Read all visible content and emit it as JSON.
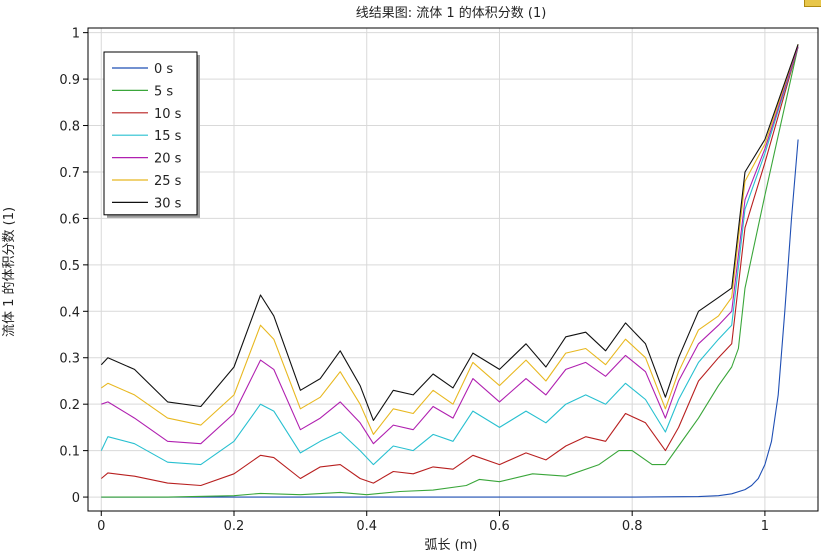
{
  "chart_data": {
    "type": "line",
    "title": "线结果图: 流体 1 的体积分数 (1)",
    "xlabel": "弧长 (m)",
    "ylabel": "流体 1 的体积分数 (1)",
    "xlim": [
      -0.02,
      1.08
    ],
    "ylim": [
      -0.03,
      1.01
    ],
    "xticks": [
      0,
      0.2,
      0.4,
      0.6,
      0.8,
      1
    ],
    "xtick_labels": [
      "0",
      "0.2",
      "0.4",
      "0.6",
      "0.8",
      "1"
    ],
    "yticks": [
      0,
      0.1,
      0.2,
      0.3,
      0.4,
      0.5,
      0.6,
      0.7,
      0.8,
      0.9,
      1
    ],
    "ytick_labels": [
      "0",
      "0.1",
      "0.2",
      "0.3",
      "0.4",
      "0.5",
      "0.6",
      "0.7",
      "0.8",
      "0.9",
      "1"
    ],
    "grid": true,
    "legend_position": "top-left",
    "series": [
      {
        "name": "0 s",
        "color": "#1f4fb4",
        "x": [
          0,
          0.1,
          0.2,
          0.3,
          0.4,
          0.5,
          0.6,
          0.7,
          0.8,
          0.9,
          0.93,
          0.95,
          0.97,
          0.98,
          0.99,
          1.0,
          1.01,
          1.02,
          1.03,
          1.04,
          1.05
        ],
        "y": [
          0,
          0,
          0,
          0,
          0,
          0,
          0,
          0,
          0,
          0.001,
          0.003,
          0.007,
          0.016,
          0.025,
          0.04,
          0.07,
          0.12,
          0.22,
          0.4,
          0.6,
          0.77
        ]
      },
      {
        "name": "5 s",
        "color": "#3aa63a",
        "x": [
          0,
          0.1,
          0.2,
          0.24,
          0.3,
          0.36,
          0.4,
          0.45,
          0.5,
          0.55,
          0.57,
          0.6,
          0.65,
          0.7,
          0.75,
          0.78,
          0.8,
          0.83,
          0.85,
          0.87,
          0.9,
          0.93,
          0.95,
          0.96,
          0.97,
          1.0,
          1.05
        ],
        "y": [
          0,
          0,
          0.003,
          0.008,
          0.005,
          0.01,
          0.005,
          0.012,
          0.015,
          0.025,
          0.038,
          0.033,
          0.05,
          0.045,
          0.07,
          0.1,
          0.1,
          0.07,
          0.07,
          0.11,
          0.17,
          0.24,
          0.28,
          0.32,
          0.45,
          0.65,
          0.97
        ]
      },
      {
        "name": "10 s",
        "color": "#b82020",
        "x": [
          0,
          0.01,
          0.05,
          0.1,
          0.15,
          0.2,
          0.24,
          0.26,
          0.3,
          0.33,
          0.36,
          0.39,
          0.41,
          0.44,
          0.47,
          0.5,
          0.53,
          0.56,
          0.6,
          0.64,
          0.67,
          0.7,
          0.73,
          0.76,
          0.79,
          0.82,
          0.85,
          0.87,
          0.9,
          0.93,
          0.95,
          0.97,
          1.0,
          1.05
        ],
        "y": [
          0.04,
          0.052,
          0.045,
          0.03,
          0.025,
          0.05,
          0.09,
          0.085,
          0.04,
          0.065,
          0.07,
          0.04,
          0.03,
          0.055,
          0.05,
          0.065,
          0.06,
          0.09,
          0.07,
          0.095,
          0.08,
          0.11,
          0.13,
          0.12,
          0.18,
          0.16,
          0.1,
          0.15,
          0.25,
          0.3,
          0.33,
          0.58,
          0.72,
          0.97
        ]
      },
      {
        "name": "15 s",
        "color": "#28c0d0",
        "x": [
          0,
          0.01,
          0.05,
          0.1,
          0.15,
          0.2,
          0.24,
          0.26,
          0.3,
          0.33,
          0.36,
          0.39,
          0.41,
          0.44,
          0.47,
          0.5,
          0.53,
          0.56,
          0.6,
          0.64,
          0.67,
          0.7,
          0.73,
          0.76,
          0.79,
          0.82,
          0.85,
          0.87,
          0.9,
          0.93,
          0.95,
          0.97,
          1.0,
          1.05
        ],
        "y": [
          0.1,
          0.13,
          0.115,
          0.075,
          0.07,
          0.12,
          0.2,
          0.185,
          0.095,
          0.12,
          0.14,
          0.1,
          0.07,
          0.11,
          0.1,
          0.135,
          0.12,
          0.185,
          0.15,
          0.185,
          0.16,
          0.2,
          0.22,
          0.2,
          0.245,
          0.21,
          0.14,
          0.21,
          0.29,
          0.34,
          0.37,
          0.62,
          0.74,
          0.97
        ]
      },
      {
        "name": "20 s",
        "color": "#b020b0",
        "x": [
          0,
          0.01,
          0.05,
          0.1,
          0.15,
          0.2,
          0.24,
          0.26,
          0.3,
          0.33,
          0.36,
          0.39,
          0.41,
          0.44,
          0.47,
          0.5,
          0.53,
          0.56,
          0.6,
          0.64,
          0.67,
          0.7,
          0.73,
          0.76,
          0.79,
          0.82,
          0.85,
          0.87,
          0.9,
          0.93,
          0.95,
          0.97,
          1.0,
          1.05
        ],
        "y": [
          0.2,
          0.205,
          0.17,
          0.12,
          0.115,
          0.18,
          0.295,
          0.275,
          0.145,
          0.17,
          0.205,
          0.16,
          0.115,
          0.155,
          0.145,
          0.195,
          0.17,
          0.255,
          0.205,
          0.255,
          0.22,
          0.275,
          0.29,
          0.26,
          0.305,
          0.27,
          0.17,
          0.25,
          0.33,
          0.37,
          0.4,
          0.64,
          0.75,
          0.97
        ]
      },
      {
        "name": "25 s",
        "color": "#e8b820",
        "x": [
          0,
          0.01,
          0.05,
          0.1,
          0.15,
          0.2,
          0.24,
          0.26,
          0.3,
          0.33,
          0.36,
          0.39,
          0.41,
          0.44,
          0.47,
          0.5,
          0.53,
          0.56,
          0.6,
          0.64,
          0.67,
          0.7,
          0.73,
          0.76,
          0.79,
          0.82,
          0.85,
          0.87,
          0.9,
          0.93,
          0.95,
          0.97,
          1.0,
          1.05
        ],
        "y": [
          0.235,
          0.245,
          0.22,
          0.17,
          0.155,
          0.22,
          0.37,
          0.34,
          0.19,
          0.215,
          0.27,
          0.2,
          0.135,
          0.19,
          0.18,
          0.23,
          0.2,
          0.29,
          0.24,
          0.295,
          0.25,
          0.31,
          0.32,
          0.285,
          0.34,
          0.3,
          0.19,
          0.27,
          0.36,
          0.39,
          0.43,
          0.68,
          0.76,
          0.975
        ]
      },
      {
        "name": "30 s",
        "color": "#111111",
        "x": [
          0,
          0.01,
          0.05,
          0.1,
          0.15,
          0.2,
          0.24,
          0.26,
          0.3,
          0.33,
          0.36,
          0.39,
          0.41,
          0.44,
          0.47,
          0.5,
          0.53,
          0.56,
          0.6,
          0.64,
          0.67,
          0.7,
          0.73,
          0.76,
          0.79,
          0.82,
          0.85,
          0.87,
          0.9,
          0.93,
          0.95,
          0.97,
          1.0,
          1.05
        ],
        "y": [
          0.285,
          0.3,
          0.275,
          0.205,
          0.195,
          0.28,
          0.435,
          0.39,
          0.23,
          0.255,
          0.315,
          0.24,
          0.165,
          0.23,
          0.22,
          0.265,
          0.235,
          0.31,
          0.275,
          0.33,
          0.28,
          0.345,
          0.355,
          0.315,
          0.375,
          0.33,
          0.215,
          0.3,
          0.4,
          0.43,
          0.45,
          0.7,
          0.77,
          0.975
        ]
      }
    ]
  }
}
